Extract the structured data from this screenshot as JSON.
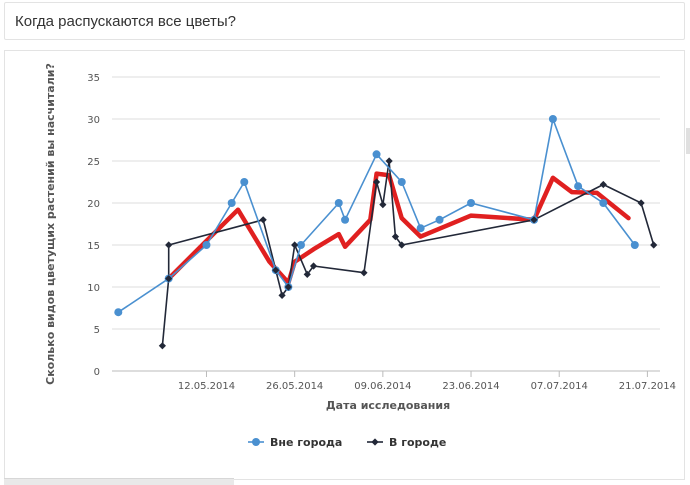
{
  "header": {
    "title": "Когда распускаются все цветы?"
  },
  "chart_data": {
    "type": "line",
    "xlabel": "Дата исследования",
    "ylabel": "Сколько видов цветущих растений вы насчитали?",
    "ylim": [
      0,
      35
    ],
    "yticks": [
      0,
      5,
      10,
      15,
      20,
      25,
      30,
      35
    ],
    "xlim": [
      "2014-04-27",
      "2014-07-23"
    ],
    "xticks": [
      "12.05.2014",
      "26.05.2014",
      "09.06.2014",
      "23.06.2014",
      "07.07.2014",
      "21.07.2014"
    ],
    "grid": true,
    "legend_position": "bottom",
    "series": [
      {
        "name": "Вне города",
        "color": "#4a90d0",
        "marker": "circle",
        "points": [
          [
            "2014-04-28",
            7
          ],
          [
            "2014-05-06",
            11
          ],
          [
            "2014-05-12",
            15
          ],
          [
            "2014-05-16",
            20
          ],
          [
            "2014-05-18",
            22.5
          ],
          [
            "2014-05-23",
            12
          ],
          [
            "2014-05-25",
            10
          ],
          [
            "2014-05-27",
            15
          ],
          [
            "2014-06-02",
            20
          ],
          [
            "2014-06-03",
            18
          ],
          [
            "2014-06-08",
            25.8
          ],
          [
            "2014-06-12",
            22.5
          ],
          [
            "2014-06-15",
            17
          ],
          [
            "2014-06-18",
            18
          ],
          [
            "2014-06-23",
            20
          ],
          [
            "2014-07-03",
            18
          ],
          [
            "2014-07-06",
            30
          ],
          [
            "2014-07-10",
            22
          ],
          [
            "2014-07-14",
            20
          ],
          [
            "2014-07-19",
            15
          ]
        ]
      },
      {
        "name": "В городе",
        "color": "#222838",
        "marker": "diamond",
        "points": [
          [
            "2014-05-05",
            3
          ],
          [
            "2014-05-06",
            11
          ],
          [
            "2014-05-06",
            15
          ],
          [
            "2014-05-21",
            18
          ],
          [
            "2014-05-23",
            12
          ],
          [
            "2014-05-24",
            9
          ],
          [
            "2014-05-25",
            10
          ],
          [
            "2014-05-26",
            15
          ],
          [
            "2014-05-28",
            11.5
          ],
          [
            "2014-05-29",
            12.5
          ],
          [
            "2014-06-06",
            11.7
          ],
          [
            "2014-06-08",
            22.5
          ],
          [
            "2014-06-09",
            19.8
          ],
          [
            "2014-06-10",
            25
          ],
          [
            "2014-06-11",
            16
          ],
          [
            "2014-06-12",
            15
          ],
          [
            "2014-07-03",
            18
          ],
          [
            "2014-07-14",
            22.2
          ],
          [
            "2014-07-20",
            20
          ],
          [
            "2014-07-22",
            15
          ]
        ]
      },
      {
        "name": "",
        "color": "#e02020",
        "marker": "none",
        "points": [
          [
            "2014-05-06",
            11
          ],
          [
            "2014-05-12",
            15.5
          ],
          [
            "2014-05-17",
            19.2
          ],
          [
            "2014-05-22",
            13
          ],
          [
            "2014-05-25",
            10.5
          ],
          [
            "2014-05-26",
            13
          ],
          [
            "2014-05-29",
            14.5
          ],
          [
            "2014-06-02",
            16.3
          ],
          [
            "2014-06-03",
            14.8
          ],
          [
            "2014-06-07",
            18
          ],
          [
            "2014-06-08",
            23.5
          ],
          [
            "2014-06-10",
            23.3
          ],
          [
            "2014-06-12",
            18.2
          ],
          [
            "2014-06-15",
            16
          ],
          [
            "2014-06-23",
            18.5
          ],
          [
            "2014-07-03",
            18
          ],
          [
            "2014-07-06",
            23
          ],
          [
            "2014-07-09",
            21.3
          ],
          [
            "2014-07-13",
            21.2
          ],
          [
            "2014-07-18",
            18.2
          ]
        ]
      }
    ]
  }
}
